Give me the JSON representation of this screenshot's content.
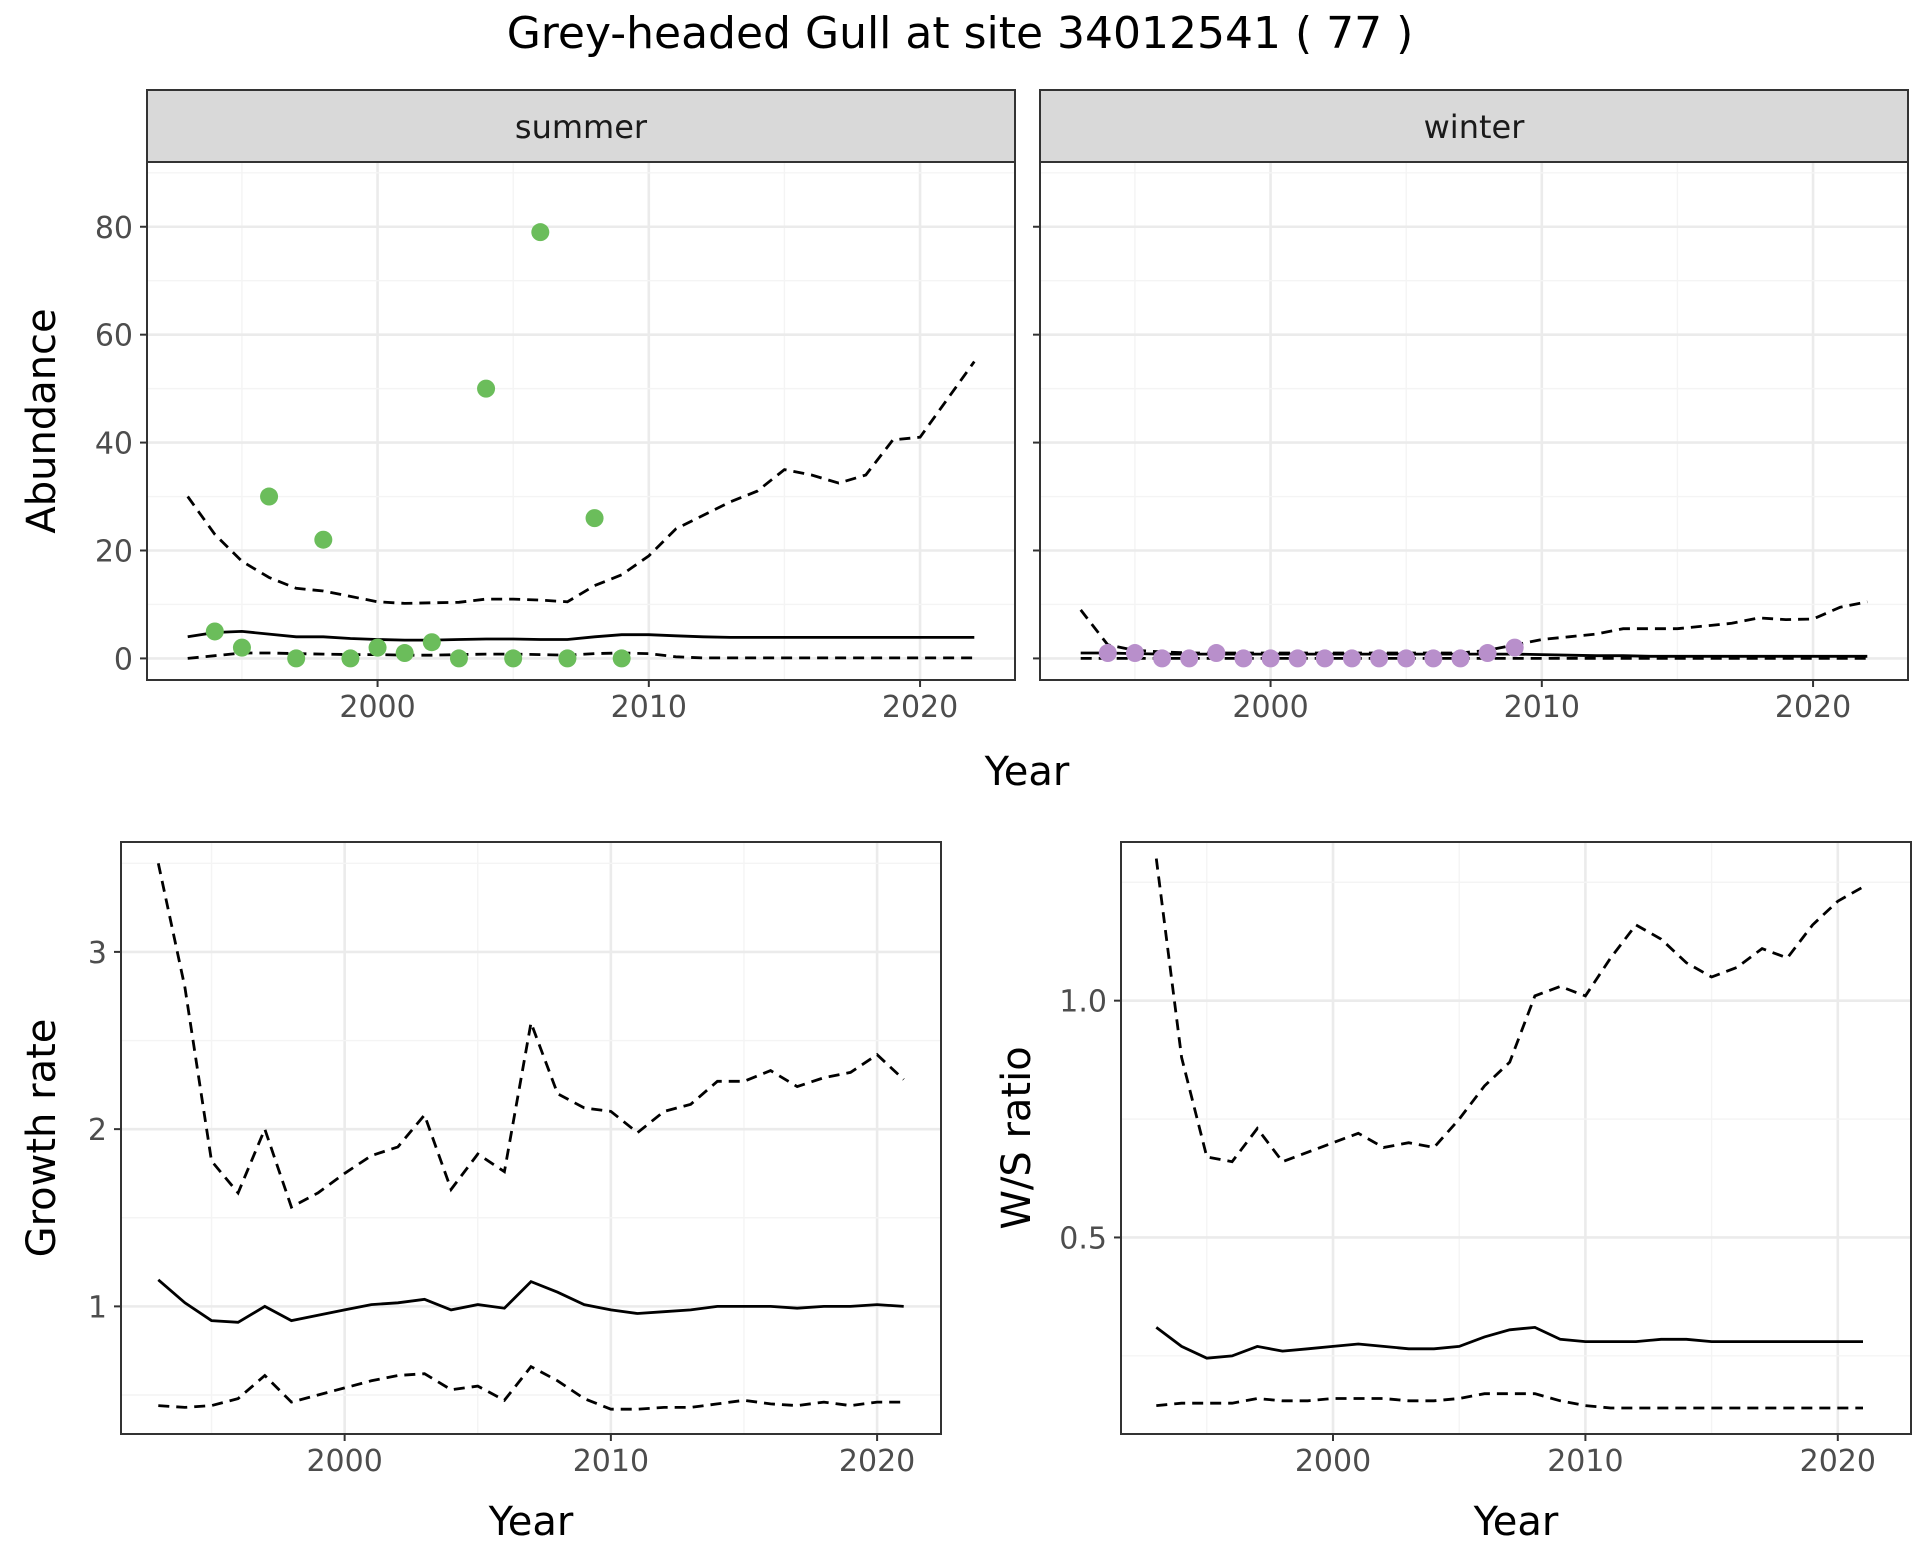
{
  "title": "Grey-headed Gull at site 34012541 ( 77 )",
  "colors": {
    "summer_points": "#6bbd5b",
    "winter_points": "#b88fcb",
    "line": "#000000",
    "strip_fill": "#d9d9d9",
    "grid_major": "#ebebeb",
    "grid_minor": "#f4f4f4",
    "tick_text": "#4d4d4d"
  },
  "chart_data": [
    {
      "type": "line",
      "panel": "summer",
      "facet_label": "summer",
      "xlabel": "Year",
      "ylabel": "Abundance",
      "xlim": [
        1991.5,
        2023.5
      ],
      "ylim": [
        -4,
        92
      ],
      "xticks": [
        2000,
        2010,
        2020
      ],
      "yticks": [
        0,
        20,
        40,
        60,
        80
      ],
      "grid": true,
      "x": [
        1993,
        1994,
        1995,
        1996,
        1997,
        1998,
        1999,
        2000,
        2001,
        2002,
        2003,
        2004,
        2005,
        2006,
        2007,
        2008,
        2009,
        2010,
        2011,
        2012,
        2013,
        2014,
        2015,
        2016,
        2017,
        2018,
        2019,
        2020,
        2021,
        2022
      ],
      "series": [
        {
          "style": "solid",
          "values": [
            4,
            4.8,
            5,
            4.5,
            4,
            4,
            3.7,
            3.5,
            3.4,
            3.4,
            3.5,
            3.6,
            3.6,
            3.5,
            3.5,
            4,
            4.4,
            4.4,
            4.2,
            4,
            3.9,
            3.9,
            3.9,
            3.9,
            3.9,
            3.9,
            3.9,
            3.9,
            3.9,
            3.9
          ]
        },
        {
          "style": "dashed",
          "values": [
            30,
            23,
            18,
            15,
            13,
            12.5,
            11.5,
            10.5,
            10.2,
            10.3,
            10.4,
            11,
            11,
            10.8,
            10.5,
            13.5,
            15.5,
            19,
            24,
            26.5,
            29,
            31,
            35,
            34,
            32.5,
            34,
            40.5,
            41,
            48,
            55
          ]
        },
        {
          "style": "dashed",
          "values": [
            0,
            0.5,
            1,
            1,
            0.9,
            0.8,
            0.7,
            0.7,
            0.6,
            0.6,
            0.7,
            0.8,
            0.8,
            0.7,
            0.6,
            0.9,
            1,
            0.9,
            0.3,
            0.1,
            0.1,
            0.1,
            0.1,
            0.1,
            0.1,
            0.1,
            0.1,
            0.1,
            0.1,
            0.1
          ]
        }
      ],
      "points": {
        "x": [
          1994,
          1995,
          1996,
          1997,
          1998,
          1999,
          2000,
          2001,
          2002,
          2003,
          2004,
          2005,
          2006,
          2007,
          2008,
          2009
        ],
        "y": [
          5,
          2,
          30,
          0,
          22,
          0,
          2,
          1,
          3,
          0,
          50,
          0,
          79,
          0,
          26,
          0
        ]
      }
    },
    {
      "type": "line",
      "panel": "winter",
      "facet_label": "winter",
      "xlabel": "Year",
      "ylabel": "",
      "xlim": [
        1991.5,
        2023.5
      ],
      "ylim": [
        -4,
        92
      ],
      "xticks": [
        2000,
        2010,
        2020
      ],
      "yticks": [],
      "grid": true,
      "x": [
        1993,
        1994,
        1995,
        1996,
        1997,
        1998,
        1999,
        2000,
        2001,
        2002,
        2003,
        2004,
        2005,
        2006,
        2007,
        2008,
        2009,
        2010,
        2011,
        2012,
        2013,
        2014,
        2015,
        2016,
        2017,
        2018,
        2019,
        2020,
        2021,
        2022
      ],
      "series": [
        {
          "style": "solid",
          "values": [
            1,
            1,
            0.9,
            0.8,
            0.8,
            0.8,
            0.8,
            0.8,
            0.8,
            0.8,
            0.8,
            0.8,
            0.8,
            0.8,
            0.8,
            0.8,
            0.8,
            0.7,
            0.6,
            0.5,
            0.5,
            0.4,
            0.4,
            0.4,
            0.4,
            0.4,
            0.4,
            0.4,
            0.4,
            0.4
          ]
        },
        {
          "style": "dashed",
          "values": [
            9,
            2.5,
            1.5,
            1.2,
            1,
            1,
            1,
            1,
            1,
            1,
            1,
            1,
            1,
            1,
            1,
            1.5,
            2.5,
            3.5,
            4,
            4.5,
            5.5,
            5.5,
            5.5,
            6,
            6.5,
            7.5,
            7.2,
            7.3,
            9.5,
            10.5
          ]
        },
        {
          "style": "dashed",
          "values": [
            0,
            0,
            0,
            0,
            0,
            0,
            0,
            0,
            0,
            0,
            0,
            0,
            0,
            0,
            0,
            0,
            0,
            0,
            0,
            0,
            0,
            0,
            0,
            0,
            0,
            0,
            0,
            0,
            0,
            0
          ]
        }
      ],
      "points": {
        "x": [
          1994,
          1995,
          1996,
          1997,
          1998,
          1999,
          2000,
          2001,
          2002,
          2003,
          2004,
          2005,
          2006,
          2007,
          2008,
          2009
        ],
        "y": [
          1,
          1,
          0,
          0,
          1,
          0,
          0,
          0,
          0,
          0,
          0,
          0,
          0,
          0,
          1,
          2
        ]
      }
    },
    {
      "type": "line",
      "panel": "growth",
      "xlabel": "Year",
      "ylabel": "Growth rate",
      "xlim": [
        1991.6,
        2022.4
      ],
      "ylim": [
        0.28,
        3.62
      ],
      "xticks": [
        2000,
        2010,
        2020
      ],
      "yticks": [
        1,
        2,
        3
      ],
      "grid": true,
      "x": [
        1993,
        1994,
        1995,
        1996,
        1997,
        1998,
        1999,
        2000,
        2001,
        2002,
        2003,
        2004,
        2005,
        2006,
        2007,
        2008,
        2009,
        2010,
        2011,
        2012,
        2013,
        2014,
        2015,
        2016,
        2017,
        2018,
        2019,
        2020,
        2021
      ],
      "series": [
        {
          "style": "solid",
          "values": [
            1.15,
            1.02,
            0.92,
            0.91,
            1,
            0.92,
            0.95,
            0.98,
            1.01,
            1.02,
            1.04,
            0.98,
            1.01,
            0.99,
            1.14,
            1.08,
            1.01,
            0.98,
            0.96,
            0.97,
            0.98,
            1,
            1,
            1,
            0.99,
            1,
            1,
            1.01,
            1
          ]
        },
        {
          "style": "dashed",
          "values": [
            3.5,
            2.8,
            1.82,
            1.64,
            2,
            1.56,
            1.64,
            1.75,
            1.85,
            1.9,
            2.08,
            1.66,
            1.86,
            1.76,
            2.6,
            2.2,
            2.12,
            2.1,
            1.98,
            2.1,
            2.14,
            2.27,
            2.27,
            2.33,
            2.24,
            2.29,
            2.32,
            2.42,
            2.28
          ]
        },
        {
          "style": "dashed",
          "values": [
            0.44,
            0.43,
            0.44,
            0.48,
            0.61,
            0.46,
            0.5,
            0.54,
            0.58,
            0.61,
            0.62,
            0.53,
            0.55,
            0.47,
            0.66,
            0.58,
            0.48,
            0.42,
            0.42,
            0.43,
            0.43,
            0.45,
            0.47,
            0.45,
            0.44,
            0.46,
            0.44,
            0.46,
            0.46
          ]
        }
      ]
    },
    {
      "type": "line",
      "panel": "ratio",
      "xlabel": "Year",
      "ylabel": "W/S ratio",
      "xlim": [
        1991.6,
        2022.9
      ],
      "ylim": [
        0.085,
        1.335
      ],
      "xticks": [
        2000,
        2010,
        2020
      ],
      "yticks": [
        0.5,
        1.0
      ],
      "ytick_labels": [
        "0.5",
        "1.0"
      ],
      "grid": true,
      "x": [
        1993,
        1994,
        1995,
        1996,
        1997,
        1998,
        1999,
        2000,
        2001,
        2002,
        2003,
        2004,
        2005,
        2006,
        2007,
        2008,
        2009,
        2010,
        2011,
        2012,
        2013,
        2014,
        2015,
        2016,
        2017,
        2018,
        2019,
        2020,
        2021
      ],
      "series": [
        {
          "style": "solid",
          "values": [
            0.31,
            0.27,
            0.245,
            0.25,
            0.27,
            0.26,
            0.265,
            0.27,
            0.275,
            0.27,
            0.265,
            0.265,
            0.27,
            0.29,
            0.305,
            0.31,
            0.285,
            0.28,
            0.28,
            0.28,
            0.285,
            0.285,
            0.28,
            0.28,
            0.28,
            0.28,
            0.28,
            0.28,
            0.28
          ]
        },
        {
          "style": "dashed",
          "values": [
            1.3,
            0.88,
            0.67,
            0.66,
            0.73,
            0.66,
            0.68,
            0.7,
            0.72,
            0.69,
            0.7,
            0.69,
            0.75,
            0.82,
            0.87,
            1.01,
            1.03,
            1.01,
            1.09,
            1.16,
            1.13,
            1.08,
            1.05,
            1.07,
            1.11,
            1.09,
            1.16,
            1.21,
            1.24
          ]
        },
        {
          "style": "dashed",
          "values": [
            0.145,
            0.15,
            0.15,
            0.15,
            0.16,
            0.155,
            0.155,
            0.16,
            0.16,
            0.16,
            0.155,
            0.155,
            0.16,
            0.17,
            0.17,
            0.17,
            0.155,
            0.145,
            0.14,
            0.14,
            0.14,
            0.14,
            0.14,
            0.14,
            0.14,
            0.14,
            0.14,
            0.14,
            0.14
          ]
        }
      ]
    }
  ]
}
